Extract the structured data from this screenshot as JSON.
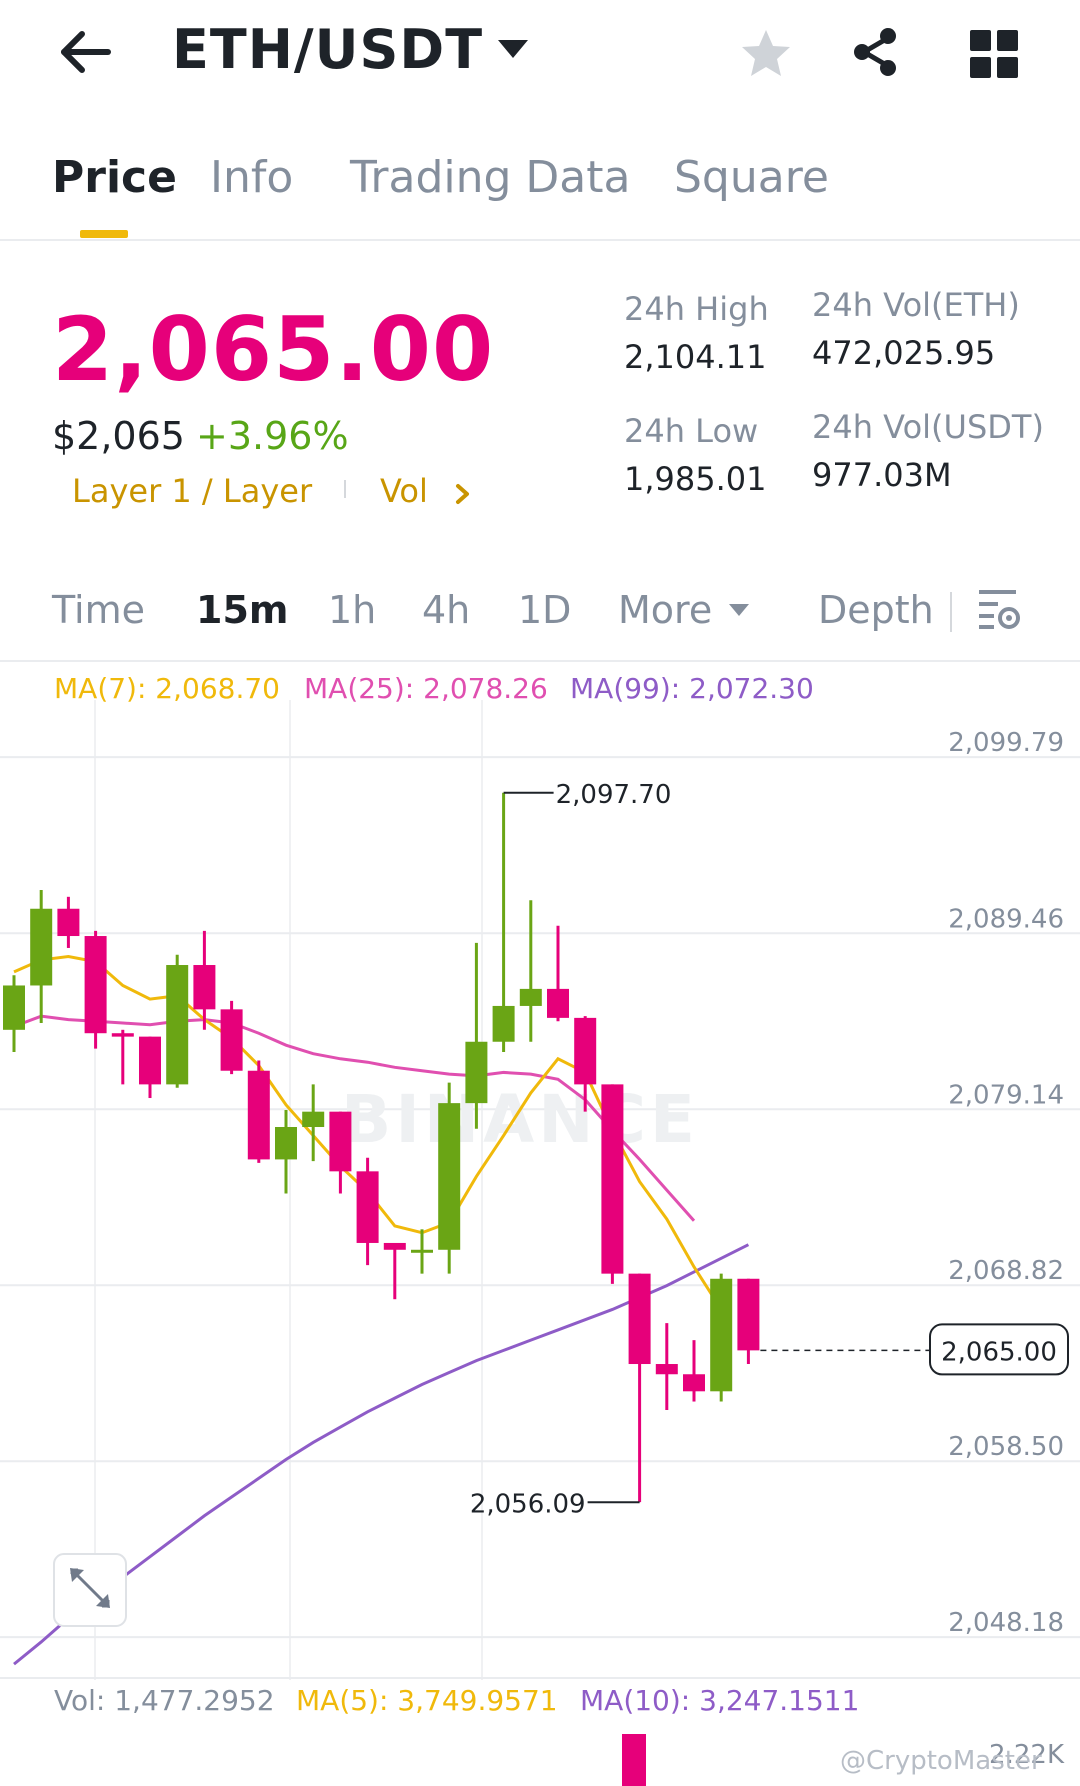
{
  "header": {
    "pair": "ETH/USDT"
  },
  "tabs": [
    "Price",
    "Info",
    "Trading Data",
    "Square"
  ],
  "price": {
    "last": "2,065.00",
    "usd": "$2,065",
    "change": "+3.96%",
    "tag_category": "Layer 1 / Layer",
    "tag_vol": "Vol"
  },
  "stats": {
    "high_label": "24h High",
    "high_value": "2,104.11",
    "low_label": "24h Low",
    "low_value": "1,985.01",
    "vol_eth_label": "24h Vol(ETH)",
    "vol_eth_value": "472,025.95",
    "vol_usdt_label": "24h Vol(USDT)",
    "vol_usdt_value": "977.03M"
  },
  "intervals": {
    "time": "Time",
    "m15": "15m",
    "h1": "1h",
    "h4": "4h",
    "d1": "1D",
    "more": "More",
    "depth": "Depth"
  },
  "chart_labels": {
    "ma7": "MA(7): 2,068.70",
    "ma25": "MA(25): 2,078.26",
    "ma99": "MA(99): 2,072.30",
    "vol": "Vol: 1,477.2952",
    "vol_ma5": "MA(5): 3,749.9571",
    "vol_ma10": "MA(10): 3,247.1511",
    "vol_axis": "2.22K",
    "watermark_logo": "BINANCE",
    "credit": "@CryptoMaster"
  },
  "colors": {
    "up": "#6aa515",
    "down": "#e6007a",
    "ma7": "#f0b90b",
    "ma25": "#e04fb0",
    "ma99": "#8e5cc7",
    "accent": "#f0b90b"
  },
  "chart_data": {
    "type": "candlestick",
    "interval": "15m",
    "y_ticks": [
      2099.79,
      2089.46,
      2079.14,
      2068.82,
      2058.5,
      2048.18
    ],
    "ylim": [
      2044.0,
      2102.0
    ],
    "current_price": 2065.0,
    "max_marker": 2097.7,
    "min_marker": 2056.09,
    "candles": [
      {
        "o": 2083.8,
        "h": 2087.0,
        "l": 2082.5,
        "c": 2086.4
      },
      {
        "o": 2086.4,
        "h": 2092.0,
        "l": 2084.2,
        "c": 2090.9
      },
      {
        "o": 2090.9,
        "h": 2091.6,
        "l": 2088.6,
        "c": 2089.3
      },
      {
        "o": 2089.3,
        "h": 2089.6,
        "l": 2082.7,
        "c": 2083.6
      },
      {
        "o": 2083.6,
        "h": 2083.8,
        "l": 2080.6,
        "c": 2083.4
      },
      {
        "o": 2083.4,
        "h": 2083.4,
        "l": 2079.8,
        "c": 2080.6
      },
      {
        "o": 2080.6,
        "h": 2088.2,
        "l": 2080.4,
        "c": 2087.6
      },
      {
        "o": 2087.6,
        "h": 2089.6,
        "l": 2083.8,
        "c": 2085.0
      },
      {
        "o": 2085.0,
        "h": 2085.5,
        "l": 2081.2,
        "c": 2081.4
      },
      {
        "o": 2081.4,
        "h": 2082.0,
        "l": 2076.0,
        "c": 2076.2
      },
      {
        "o": 2076.2,
        "h": 2079.1,
        "l": 2074.2,
        "c": 2078.1
      },
      {
        "o": 2078.1,
        "h": 2080.6,
        "l": 2076.1,
        "c": 2079.0
      },
      {
        "o": 2079.0,
        "h": 2079.0,
        "l": 2074.2,
        "c": 2075.5
      },
      {
        "o": 2075.5,
        "h": 2076.3,
        "l": 2070.0,
        "c": 2071.3
      },
      {
        "o": 2071.3,
        "h": 2071.1,
        "l": 2068.0,
        "c": 2070.9
      },
      {
        "o": 2070.9,
        "h": 2072.1,
        "l": 2069.5,
        "c": 2070.9
      },
      {
        "o": 2070.9,
        "h": 2080.7,
        "l": 2069.5,
        "c": 2079.5
      },
      {
        "o": 2079.5,
        "h": 2088.9,
        "l": 2078.0,
        "c": 2083.1
      },
      {
        "o": 2083.1,
        "h": 2097.7,
        "l": 2082.5,
        "c": 2085.2
      },
      {
        "o": 2085.2,
        "h": 2091.4,
        "l": 2083.1,
        "c": 2086.2
      },
      {
        "o": 2086.2,
        "h": 2089.9,
        "l": 2084.3,
        "c": 2084.5
      },
      {
        "o": 2084.5,
        "h": 2084.6,
        "l": 2079.0,
        "c": 2080.6
      },
      {
        "o": 2080.6,
        "h": 2080.6,
        "l": 2068.9,
        "c": 2069.5
      },
      {
        "o": 2069.5,
        "h": 2069.5,
        "l": 2056.1,
        "c": 2064.2
      },
      {
        "o": 2064.2,
        "h": 2066.6,
        "l": 2061.5,
        "c": 2063.6
      },
      {
        "o": 2063.6,
        "h": 2065.6,
        "l": 2062.0,
        "c": 2062.6
      },
      {
        "o": 2062.6,
        "h": 2069.5,
        "l": 2062.0,
        "c": 2069.2
      },
      {
        "o": 2069.2,
        "h": 2069.2,
        "l": 2064.2,
        "c": 2065.0
      }
    ],
    "ma7": [
      2087.2,
      2087.9,
      2088.1,
      2087.8,
      2086.4,
      2085.6,
      2085.8,
      2084.4,
      2083.3,
      2081.7,
      2079.4,
      2077.6,
      2075.8,
      2074.3,
      2072.3,
      2071.9,
      2072.5,
      2075.2,
      2077.6,
      2080.1,
      2082.1,
      2081.3,
      2077.9,
      2074.9,
      2072.7,
      2069.9,
      2067.4
    ],
    "ma25": [
      2084.0,
      2084.6,
      2084.4,
      2084.3,
      2084.2,
      2084.1,
      2084.3,
      2084.4,
      2084.2,
      2083.6,
      2082.9,
      2082.4,
      2082.1,
      2081.9,
      2081.6,
      2081.4,
      2081.2,
      2081.1,
      2081.3,
      2081.2,
      2080.9,
      2079.7,
      2077.9,
      2076.2,
      2074.4,
      2072.6
    ],
    "ma99": [
      2046.6,
      2047.9,
      2049.3,
      2050.5,
      2051.7,
      2052.9,
      2054.1,
      2055.3,
      2056.4,
      2057.5,
      2058.6,
      2059.6,
      2060.5,
      2061.4,
      2062.2,
      2063.0,
      2063.7,
      2064.4,
      2065.0,
      2065.6,
      2066.2,
      2066.8,
      2067.4,
      2068.1,
      2068.8,
      2069.6,
      2070.4,
      2071.2
    ],
    "vol_last_bar": 2220
  }
}
